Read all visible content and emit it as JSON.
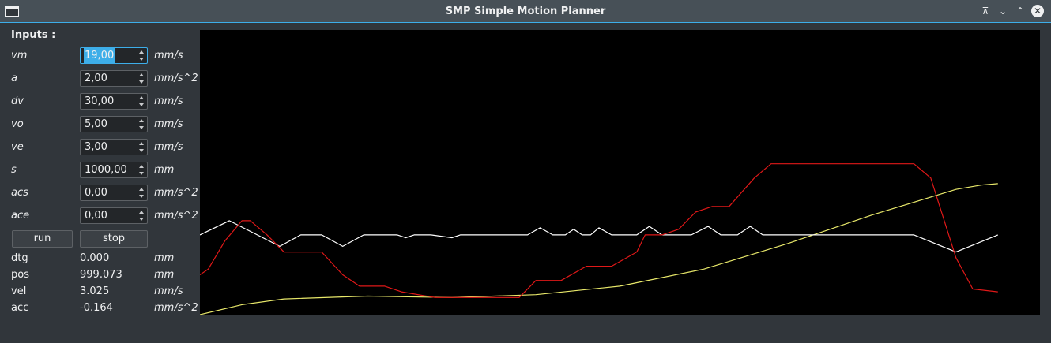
{
  "window": {
    "title": "SMP Simple Motion Planner"
  },
  "inputs": {
    "heading": "Inputs :",
    "params": [
      {
        "name": "vm",
        "value": "19,00",
        "unit": "mm/s"
      },
      {
        "name": "a",
        "value": "2,00",
        "unit": "mm/s^2"
      },
      {
        "name": "dv",
        "value": "30,00",
        "unit": "mm/s"
      },
      {
        "name": "vo",
        "value": "5,00",
        "unit": "mm/s"
      },
      {
        "name": "ve",
        "value": "3,00",
        "unit": "mm/s"
      },
      {
        "name": "s",
        "value": "1000,00",
        "unit": "mm"
      },
      {
        "name": "acs",
        "value": "0,00",
        "unit": "mm/s^2"
      },
      {
        "name": "ace",
        "value": "0,00",
        "unit": "mm/s^2"
      }
    ]
  },
  "buttons": {
    "run": "run",
    "stop": "stop"
  },
  "outputs": [
    {
      "name": "dtg",
      "value": "0.000",
      "unit": "mm"
    },
    {
      "name": "pos",
      "value": "999.073",
      "unit": "mm"
    },
    {
      "name": "vel",
      "value": "3.025",
      "unit": "mm/s"
    },
    {
      "name": "acc",
      "value": "-0.164",
      "unit": "mm/s^2"
    }
  ],
  "plot": {
    "colors": {
      "background": "#000000",
      "yellow": "#e8e86a",
      "white": "#ffffff",
      "red": "#e01818"
    },
    "position_curve": [
      [
        0,
        0
      ],
      [
        0.05,
        0.035
      ],
      [
        0.1,
        0.055
      ],
      [
        0.2,
        0.065
      ],
      [
        0.3,
        0.06
      ],
      [
        0.4,
        0.07
      ],
      [
        0.5,
        0.1
      ],
      [
        0.6,
        0.16
      ],
      [
        0.7,
        0.25
      ],
      [
        0.8,
        0.35
      ],
      [
        0.9,
        0.44
      ],
      [
        0.93,
        0.455
      ],
      [
        0.95,
        0.46
      ]
    ],
    "accel_curve": [
      [
        0,
        0.28
      ],
      [
        0.035,
        0.33
      ],
      [
        0.095,
        0.24
      ],
      [
        0.12,
        0.28
      ],
      [
        0.145,
        0.28
      ],
      [
        0.17,
        0.24
      ],
      [
        0.195,
        0.28
      ],
      [
        0.235,
        0.28
      ],
      [
        0.245,
        0.27
      ],
      [
        0.255,
        0.28
      ],
      [
        0.275,
        0.28
      ],
      [
        0.3,
        0.27
      ],
      [
        0.31,
        0.28
      ],
      [
        0.39,
        0.28
      ],
      [
        0.405,
        0.305
      ],
      [
        0.42,
        0.28
      ],
      [
        0.435,
        0.28
      ],
      [
        0.445,
        0.3
      ],
      [
        0.455,
        0.28
      ],
      [
        0.465,
        0.28
      ],
      [
        0.475,
        0.305
      ],
      [
        0.49,
        0.28
      ],
      [
        0.52,
        0.28
      ],
      [
        0.535,
        0.31
      ],
      [
        0.55,
        0.28
      ],
      [
        0.585,
        0.28
      ],
      [
        0.605,
        0.31
      ],
      [
        0.62,
        0.28
      ],
      [
        0.64,
        0.28
      ],
      [
        0.655,
        0.31
      ],
      [
        0.67,
        0.28
      ],
      [
        0.675,
        0.28
      ],
      [
        0.685,
        0.28
      ],
      [
        0.85,
        0.28
      ],
      [
        0.9,
        0.22
      ],
      [
        0.95,
        0.28
      ]
    ],
    "velocity_curve": [
      [
        0,
        0.14
      ],
      [
        0.01,
        0.16
      ],
      [
        0.03,
        0.26
      ],
      [
        0.05,
        0.33
      ],
      [
        0.06,
        0.33
      ],
      [
        0.08,
        0.28
      ],
      [
        0.1,
        0.22
      ],
      [
        0.12,
        0.22
      ],
      [
        0.145,
        0.22
      ],
      [
        0.17,
        0.14
      ],
      [
        0.19,
        0.1
      ],
      [
        0.22,
        0.1
      ],
      [
        0.24,
        0.08
      ],
      [
        0.28,
        0.06
      ],
      [
        0.3,
        0.06
      ],
      [
        0.38,
        0.06
      ],
      [
        0.4,
        0.12
      ],
      [
        0.43,
        0.12
      ],
      [
        0.46,
        0.17
      ],
      [
        0.49,
        0.17
      ],
      [
        0.52,
        0.22
      ],
      [
        0.53,
        0.28
      ],
      [
        0.55,
        0.28
      ],
      [
        0.57,
        0.3
      ],
      [
        0.59,
        0.36
      ],
      [
        0.61,
        0.38
      ],
      [
        0.63,
        0.38
      ],
      [
        0.66,
        0.48
      ],
      [
        0.68,
        0.53
      ],
      [
        0.85,
        0.53
      ],
      [
        0.87,
        0.48
      ],
      [
        0.9,
        0.2
      ],
      [
        0.92,
        0.09
      ],
      [
        0.95,
        0.08
      ]
    ]
  }
}
